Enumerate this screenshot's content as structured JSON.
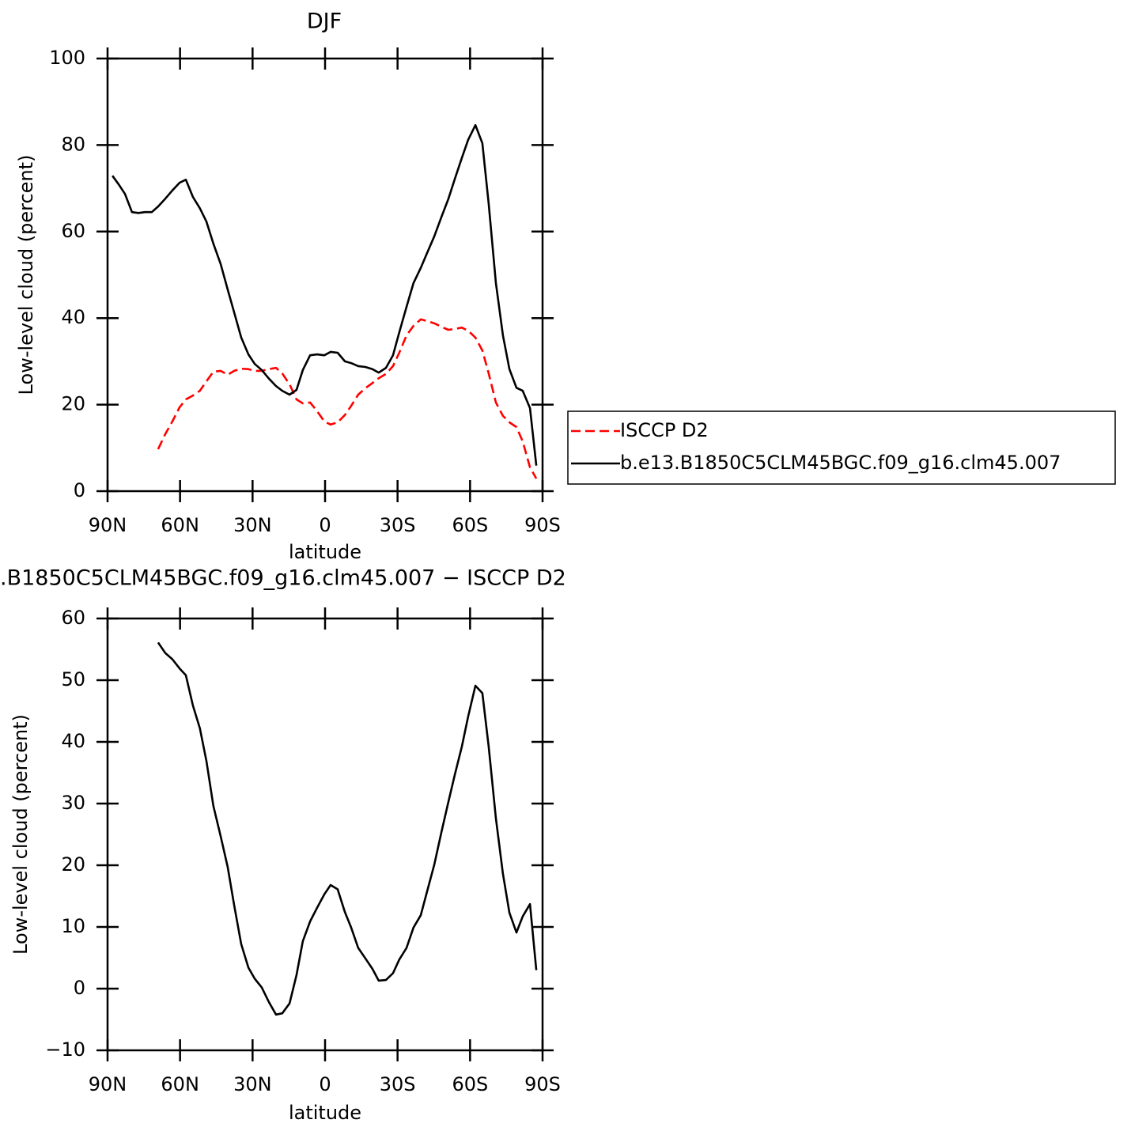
{
  "chart_data": [
    {
      "type": "line",
      "title": "DJF",
      "x_label": "latitude",
      "y_label": "Low-level cloud (percent)",
      "x": [
        88.0,
        85.4,
        82.8,
        79.9,
        77.2,
        74.6,
        71.7,
        69.1,
        66.1,
        63.2,
        60.2,
        57.6,
        54.7,
        51.8,
        49.1,
        46.2,
        43.2,
        40.3,
        37.6,
        34.7,
        31.7,
        29.1,
        26.2,
        23.2,
        20.3,
        17.7,
        14.7,
        11.8,
        9.2,
        6.2,
        3.3,
        0.3,
        -2.3,
        -5.2,
        -8.2,
        -10.8,
        -13.7,
        -16.7,
        -19.6,
        -22.2,
        -25.2,
        -28.1,
        -30.7,
        -33.7,
        -36.6,
        -39.6,
        -42.2,
        -45.2,
        -48.1,
        -51.0,
        -53.7,
        -56.6,
        -59.2,
        -62.2,
        -65.1,
        -67.7,
        -70.7,
        -73.6,
        -76.3,
        -79.2,
        -81.8,
        -84.8,
        -87.4
      ],
      "series": [
        {
          "name": "ISCCP D2",
          "color": "#ff0000",
          "line_style": "dashed",
          "values": [
            null,
            null,
            null,
            null,
            null,
            null,
            null,
            9.7,
            13.2,
            16.1,
            19.4,
            21.2,
            22.1,
            23.2,
            25.4,
            27.6,
            27.8,
            26.9,
            27.8,
            28.3,
            28.2,
            27.8,
            27.8,
            28.2,
            28.5,
            27.2,
            24.7,
            21.2,
            20.3,
            20.5,
            18.5,
            16.1,
            15.4,
            15.9,
            17.6,
            19.7,
            22.3,
            23.8,
            25.0,
            26.1,
            27.1,
            28.9,
            32.0,
            36.0,
            38.2,
            39.7,
            39.3,
            38.8,
            38.0,
            37.3,
            37.5,
            37.8,
            37.1,
            35.5,
            32.5,
            27.2,
            20.5,
            17.4,
            15.9,
            14.8,
            11.5,
            5.5,
            2.9
          ]
        },
        {
          "name": "b.e13.B1850C5CLM45BGC.f09_g16.clm45.007",
          "color": "#000000",
          "line_style": "solid",
          "values": [
            72.9,
            70.9,
            68.7,
            64.5,
            64.3,
            64.5,
            64.5,
            65.8,
            67.6,
            69.5,
            71.3,
            72.0,
            68.0,
            65.4,
            62.3,
            57.2,
            52.5,
            46.6,
            41.3,
            35.5,
            31.6,
            29.4,
            28.0,
            26.0,
            24.3,
            23.2,
            22.3,
            23.4,
            28.0,
            31.4,
            31.6,
            31.4,
            32.2,
            32.0,
            30.0,
            29.6,
            28.9,
            28.7,
            28.2,
            27.4,
            28.5,
            31.4,
            36.7,
            42.6,
            48.1,
            51.6,
            55.0,
            58.9,
            63.3,
            67.5,
            72.2,
            77.0,
            81.2,
            84.6,
            80.4,
            66.4,
            48.1,
            36.0,
            28.2,
            23.9,
            23.2,
            19.2,
            5.9
          ]
        }
      ],
      "xlim": [
        90,
        -90
      ],
      "xticks": [
        {
          "value": 90,
          "label": "90N"
        },
        {
          "value": 60,
          "label": "60N"
        },
        {
          "value": 30,
          "label": "30N"
        },
        0,
        {
          "value": -30,
          "label": "30S"
        },
        {
          "value": -60,
          "label": "60S"
        },
        {
          "value": -90,
          "label": "90S"
        }
      ],
      "ylim": [
        0,
        100
      ],
      "yticks": [
        0,
        20,
        40,
        60,
        80,
        100
      ],
      "legend": "right"
    },
    {
      "type": "line",
      "title": ".B1850C5CLM45BGC.f09_g16.clm45.007 − ISCCP D2",
      "x_label": "latitude",
      "y_label": "Low-level cloud (percent)",
      "x": [
        88.0,
        85.4,
        82.8,
        79.9,
        77.2,
        74.6,
        71.7,
        69.1,
        66.1,
        63.2,
        60.2,
        57.6,
        54.7,
        51.8,
        49.1,
        46.2,
        43.2,
        40.3,
        37.6,
        34.7,
        31.7,
        29.1,
        26.2,
        23.2,
        20.3,
        17.7,
        14.7,
        11.8,
        9.2,
        6.2,
        3.3,
        0.3,
        -2.3,
        -5.2,
        -8.2,
        -10.8,
        -13.7,
        -16.7,
        -19.6,
        -22.2,
        -25.2,
        -28.1,
        -30.7,
        -33.7,
        -36.6,
        -39.6,
        -42.2,
        -45.2,
        -48.1,
        -51.0,
        -53.7,
        -56.6,
        -59.2,
        -62.2,
        -65.1,
        -67.7,
        -70.7,
        -73.6,
        -76.3,
        -79.2,
        -81.8,
        -84.8,
        -87.4
      ],
      "series": [
        {
          "color": "#000000",
          "line_style": "solid",
          "values": [
            null,
            null,
            null,
            null,
            null,
            null,
            null,
            56.1,
            54.4,
            53.4,
            51.9,
            50.8,
            45.9,
            42.2,
            36.9,
            29.6,
            24.7,
            19.7,
            13.5,
            7.2,
            3.4,
            1.6,
            0.2,
            -2.2,
            -4.2,
            -4.0,
            -2.4,
            2.2,
            7.7,
            10.9,
            13.1,
            15.3,
            16.8,
            16.1,
            12.4,
            9.9,
            6.6,
            4.9,
            3.2,
            1.3,
            1.4,
            2.5,
            4.7,
            6.6,
            9.9,
            11.9,
            15.7,
            20.1,
            25.3,
            30.2,
            34.7,
            39.2,
            44.1,
            49.1,
            47.9,
            39.2,
            27.6,
            18.6,
            12.3,
            9.1,
            11.7,
            13.7,
            3.0
          ]
        }
      ],
      "xlim": [
        90,
        -90
      ],
      "xticks": [
        {
          "value": 90,
          "label": "90N"
        },
        {
          "value": 60,
          "label": "60N"
        },
        {
          "value": 30,
          "label": "30N"
        },
        0,
        {
          "value": -30,
          "label": "30S"
        },
        {
          "value": -60,
          "label": "60S"
        },
        {
          "value": -90,
          "label": "90S"
        }
      ],
      "ylim": [
        -10,
        60
      ],
      "yticks": [
        {
          "value": -10,
          "label": "−10"
        },
        0,
        10,
        20,
        30,
        40,
        50,
        60
      ]
    }
  ]
}
